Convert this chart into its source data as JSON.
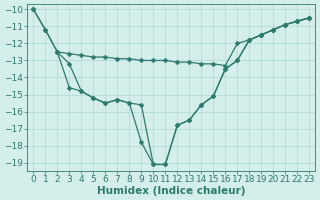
{
  "line1_x": [
    0,
    1,
    2,
    3,
    4,
    5,
    6,
    7,
    8,
    9,
    10,
    11,
    12,
    13,
    14,
    15,
    16,
    17,
    18,
    19,
    20,
    21,
    22,
    23
  ],
  "line1_y": [
    -10.0,
    -11.2,
    -12.5,
    -12.6,
    -12.7,
    -12.8,
    -12.8,
    -12.9,
    -12.9,
    -13.0,
    -13.0,
    -13.0,
    -13.1,
    -13.1,
    -13.2,
    -13.2,
    -13.3,
    -12.0,
    -11.8,
    -11.5,
    -11.2,
    -10.9,
    -10.7,
    -10.5
  ],
  "line2_x": [
    0,
    1,
    2,
    3,
    4,
    5,
    6,
    7,
    8,
    9,
    10,
    11,
    12,
    13,
    14,
    15,
    16,
    17,
    18,
    19,
    20,
    21,
    22,
    23
  ],
  "line2_y": [
    -10.0,
    -11.2,
    -12.5,
    -14.6,
    -14.8,
    -15.2,
    -15.5,
    -15.3,
    -15.5,
    -15.6,
    -19.1,
    -19.1,
    -16.8,
    -16.5,
    -15.6,
    -15.1,
    -13.5,
    -13.0,
    -11.8,
    -11.5,
    -11.2,
    -10.9,
    -10.7,
    -10.5
  ],
  "line3_x": [
    2,
    3,
    4,
    5,
    6,
    7,
    8,
    9,
    10,
    11,
    12,
    13,
    14,
    15,
    16,
    17,
    18,
    19,
    20,
    21,
    22,
    23
  ],
  "line3_y": [
    -12.5,
    -13.2,
    -14.8,
    -15.2,
    -15.5,
    -15.3,
    -15.5,
    -17.8,
    -19.1,
    -19.1,
    -16.8,
    -16.5,
    -15.6,
    -15.1,
    -13.5,
    -13.0,
    -11.8,
    -11.5,
    -11.2,
    -10.9,
    -10.7,
    -10.5
  ],
  "line_color": "#2d7a6e",
  "bg_color": "#d4eeec",
  "grid_color": "#b0d8d3",
  "xlabel": "Humidex (Indice chaleur)",
  "xlim": [
    -0.5,
    23.5
  ],
  "ylim": [
    -19.5,
    -9.7
  ],
  "yticks": [
    -10,
    -11,
    -12,
    -13,
    -14,
    -15,
    -16,
    -17,
    -18,
    -19
  ],
  "xticks": [
    0,
    1,
    2,
    3,
    4,
    5,
    6,
    7,
    8,
    9,
    10,
    11,
    12,
    13,
    14,
    15,
    16,
    17,
    18,
    19,
    20,
    21,
    22,
    23
  ],
  "tick_color": "#2d7a6e",
  "label_color": "#2d7a6e",
  "font_size": 6.5,
  "xlabel_fontsize": 7.5,
  "lw": 0.9,
  "marker_size": 2.5
}
